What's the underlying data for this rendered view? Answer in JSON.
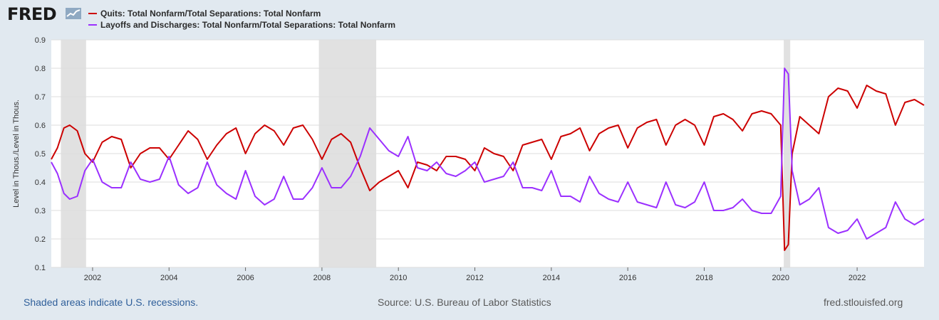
{
  "header": {
    "logo_text": "FRED",
    "logo_icon": "chart-line-icon"
  },
  "footer": {
    "recession_note": "Shaded areas indicate U.S. recessions.",
    "source": "Source: U.S. Bureau of Labor Statistics",
    "site": "fred.stlouisfed.org"
  },
  "colors": {
    "background": "#e1e9f0",
    "plot_background": "#ffffff",
    "recession": "#e1e1e1",
    "quits": "#cc0000",
    "layoffs": "#9b30ff",
    "grid": "#dddddd"
  },
  "chart_data": {
    "type": "line",
    "title": "",
    "xlabel": "",
    "ylabel": "Level in Thous./Level in Thous.",
    "xlim": [
      2000.92,
      2023.75
    ],
    "ylim": [
      0.1,
      0.9
    ],
    "grid": true,
    "legend_position": "top-left",
    "x_ticks": [
      "2002",
      "2004",
      "2006",
      "2008",
      "2010",
      "2012",
      "2014",
      "2016",
      "2018",
      "2020",
      "2022"
    ],
    "y_ticks": [
      "0.1",
      "0.2",
      "0.3",
      "0.4",
      "0.5",
      "0.6",
      "0.7",
      "0.8",
      "0.9"
    ],
    "recessions": [
      [
        2001.17,
        2001.83
      ],
      [
        2007.92,
        2009.42
      ],
      [
        2020.08,
        2020.25
      ]
    ],
    "series": [
      {
        "name": "Quits: Total Nonfarm/Total Separations: Total Nonfarm",
        "color": "#cc0000",
        "x": [
          2000.92,
          2001.08,
          2001.25,
          2001.4,
          2001.6,
          2001.8,
          2002.0,
          2002.25,
          2002.5,
          2002.75,
          2003.0,
          2003.25,
          2003.5,
          2003.75,
          2004.0,
          2004.25,
          2004.5,
          2004.75,
          2005.0,
          2005.25,
          2005.5,
          2005.75,
          2006.0,
          2006.25,
          2006.5,
          2006.75,
          2007.0,
          2007.25,
          2007.5,
          2007.75,
          2008.0,
          2008.25,
          2008.5,
          2008.75,
          2009.0,
          2009.25,
          2009.5,
          2009.75,
          2010.0,
          2010.25,
          2010.5,
          2010.75,
          2011.0,
          2011.25,
          2011.5,
          2011.75,
          2012.0,
          2012.25,
          2012.5,
          2012.75,
          2013.0,
          2013.25,
          2013.5,
          2013.75,
          2014.0,
          2014.25,
          2014.5,
          2014.75,
          2015.0,
          2015.25,
          2015.5,
          2015.75,
          2016.0,
          2016.25,
          2016.5,
          2016.75,
          2017.0,
          2017.25,
          2017.5,
          2017.75,
          2018.0,
          2018.25,
          2018.5,
          2018.75,
          2019.0,
          2019.25,
          2019.5,
          2019.75,
          2020.0,
          2020.1,
          2020.2,
          2020.3,
          2020.5,
          2020.75,
          2021.0,
          2021.25,
          2021.5,
          2021.75,
          2022.0,
          2022.25,
          2022.5,
          2022.75,
          2023.0,
          2023.25,
          2023.5,
          2023.75
        ],
        "values": [
          0.48,
          0.52,
          0.59,
          0.6,
          0.58,
          0.5,
          0.47,
          0.54,
          0.56,
          0.55,
          0.45,
          0.5,
          0.52,
          0.52,
          0.48,
          0.53,
          0.58,
          0.55,
          0.48,
          0.53,
          0.57,
          0.59,
          0.5,
          0.57,
          0.6,
          0.58,
          0.53,
          0.59,
          0.6,
          0.55,
          0.48,
          0.55,
          0.57,
          0.54,
          0.45,
          0.37,
          0.4,
          0.42,
          0.44,
          0.38,
          0.47,
          0.46,
          0.44,
          0.49,
          0.49,
          0.48,
          0.44,
          0.52,
          0.5,
          0.49,
          0.44,
          0.53,
          0.54,
          0.55,
          0.48,
          0.56,
          0.57,
          0.59,
          0.51,
          0.57,
          0.59,
          0.6,
          0.52,
          0.59,
          0.61,
          0.62,
          0.53,
          0.6,
          0.62,
          0.6,
          0.53,
          0.63,
          0.64,
          0.62,
          0.58,
          0.64,
          0.65,
          0.64,
          0.6,
          0.16,
          0.18,
          0.5,
          0.63,
          0.6,
          0.57,
          0.7,
          0.73,
          0.72,
          0.66,
          0.74,
          0.72,
          0.71,
          0.6,
          0.68,
          0.69,
          0.67
        ]
      },
      {
        "name": "Layoffs and Discharges: Total Nonfarm/Total Separations: Total Nonfarm",
        "color": "#9b30ff",
        "x": [
          2000.92,
          2001.08,
          2001.25,
          2001.4,
          2001.6,
          2001.8,
          2002.0,
          2002.25,
          2002.5,
          2002.75,
          2003.0,
          2003.25,
          2003.5,
          2003.75,
          2004.0,
          2004.25,
          2004.5,
          2004.75,
          2005.0,
          2005.25,
          2005.5,
          2005.75,
          2006.0,
          2006.25,
          2006.5,
          2006.75,
          2007.0,
          2007.25,
          2007.5,
          2007.75,
          2008.0,
          2008.25,
          2008.5,
          2008.75,
          2009.0,
          2009.25,
          2009.5,
          2009.75,
          2010.0,
          2010.25,
          2010.5,
          2010.75,
          2011.0,
          2011.25,
          2011.5,
          2011.75,
          2012.0,
          2012.25,
          2012.5,
          2012.75,
          2013.0,
          2013.25,
          2013.5,
          2013.75,
          2014.0,
          2014.25,
          2014.5,
          2014.75,
          2015.0,
          2015.25,
          2015.5,
          2015.75,
          2016.0,
          2016.25,
          2016.5,
          2016.75,
          2017.0,
          2017.25,
          2017.5,
          2017.75,
          2018.0,
          2018.25,
          2018.5,
          2018.75,
          2019.0,
          2019.25,
          2019.5,
          2019.75,
          2020.0,
          2020.1,
          2020.2,
          2020.3,
          2020.5,
          2020.75,
          2021.0,
          2021.25,
          2021.5,
          2021.75,
          2022.0,
          2022.25,
          2022.5,
          2022.75,
          2023.0,
          2023.25,
          2023.5,
          2023.75
        ],
        "values": [
          0.47,
          0.43,
          0.36,
          0.34,
          0.35,
          0.44,
          0.48,
          0.4,
          0.38,
          0.38,
          0.47,
          0.41,
          0.4,
          0.41,
          0.49,
          0.39,
          0.36,
          0.38,
          0.47,
          0.39,
          0.36,
          0.34,
          0.44,
          0.35,
          0.32,
          0.34,
          0.42,
          0.34,
          0.34,
          0.38,
          0.45,
          0.38,
          0.38,
          0.42,
          0.49,
          0.59,
          0.55,
          0.51,
          0.49,
          0.56,
          0.45,
          0.44,
          0.47,
          0.43,
          0.42,
          0.44,
          0.47,
          0.4,
          0.41,
          0.42,
          0.47,
          0.38,
          0.38,
          0.37,
          0.44,
          0.35,
          0.35,
          0.33,
          0.42,
          0.36,
          0.34,
          0.33,
          0.4,
          0.33,
          0.32,
          0.31,
          0.4,
          0.32,
          0.31,
          0.33,
          0.4,
          0.3,
          0.3,
          0.31,
          0.34,
          0.3,
          0.29,
          0.29,
          0.35,
          0.8,
          0.78,
          0.44,
          0.32,
          0.34,
          0.38,
          0.24,
          0.22,
          0.23,
          0.27,
          0.2,
          0.22,
          0.24,
          0.33,
          0.27,
          0.25,
          0.27
        ]
      }
    ]
  }
}
